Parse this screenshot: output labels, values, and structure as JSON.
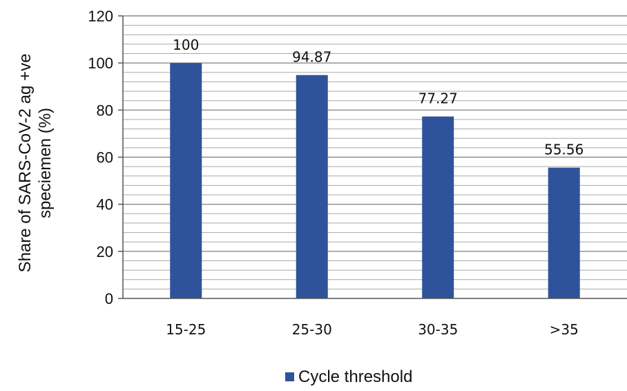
{
  "chart_data": {
    "type": "bar",
    "categories": [
      "15-25",
      "25-30",
      "30-35",
      ">35"
    ],
    "series": [
      {
        "name": "Cycle threshold",
        "values": [
          100,
          94.87,
          77.27,
          55.56
        ],
        "data_labels": [
          "100",
          "94.87",
          "77.27",
          "55.56"
        ],
        "color": "#2f539b"
      }
    ],
    "title": "",
    "xlabel": "",
    "ylabel_lines": [
      "Share of SARS-CoV-2 ag +ve",
      "speciemen (%)"
    ],
    "ylim": [
      0,
      120
    ],
    "yticks": [
      0,
      20,
      40,
      60,
      80,
      100,
      120
    ],
    "minor_grid_step": 4,
    "grid": true,
    "legend": {
      "position": "bottom",
      "label": "Cycle threshold"
    }
  }
}
